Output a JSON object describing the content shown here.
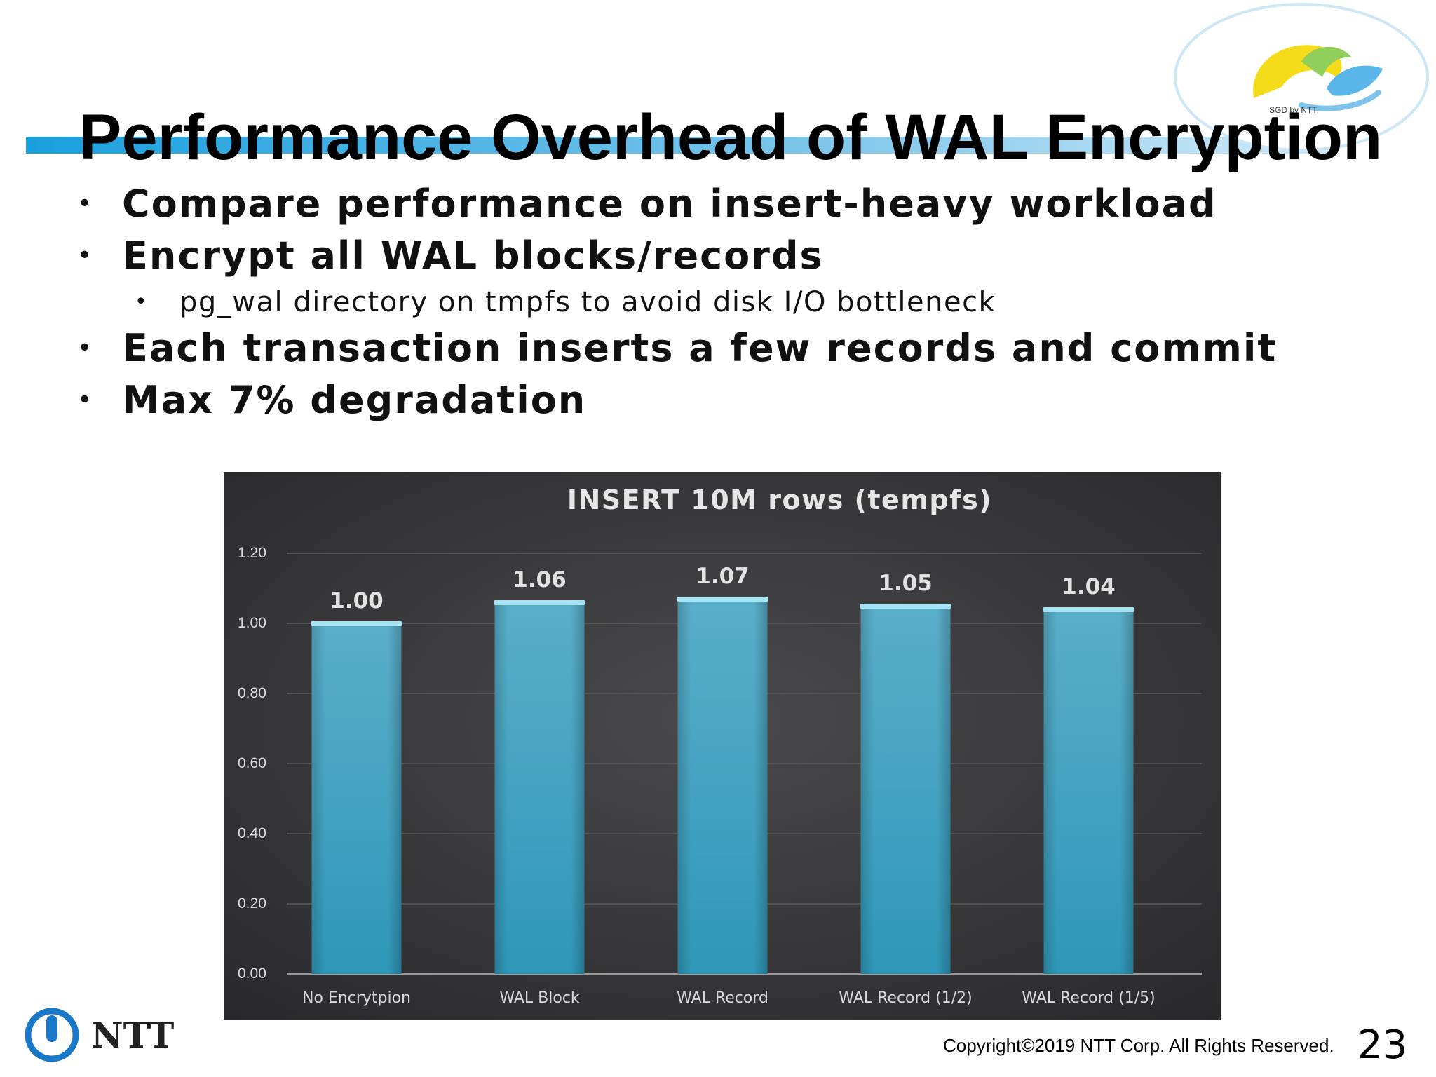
{
  "slide": {
    "title": "Performance Overhead of WAL Encryption",
    "badge_text": "SGD by NTT",
    "bullets": [
      {
        "text": "Compare performance on insert-heavy workload",
        "level": 1
      },
      {
        "text": "Encrypt all WAL blocks/records",
        "level": 1
      },
      {
        "text": "pg_wal directory on tmpfs to avoid disk I/O bottleneck",
        "level": 2
      },
      {
        "text": "Each transaction inserts a few records and commit",
        "level": 1
      },
      {
        "text": "Max 7% degradation",
        "level": 1
      }
    ],
    "logo_text": "NTT",
    "copyright": "Copyright©2019  NTT Corp. All Rights Reserved.",
    "page_number": "23"
  },
  "colors": {
    "chart_background": "#3a3a3c",
    "bar": "#3a9dbf",
    "bar_top": "#a6e3f2",
    "title_rule": "#2aa6df",
    "ntt_blue": "#1a78c8"
  },
  "chart_data": {
    "type": "bar",
    "title": "INSERT  10M rows (tempfs)",
    "categories": [
      "No Encrytpion",
      "WAL Block",
      "WAL Record",
      "WAL Record (1/2)",
      "WAL Record (1/5)"
    ],
    "values": [
      1.0,
      1.06,
      1.07,
      1.05,
      1.04
    ],
    "data_labels": [
      "1.00",
      "1.06",
      "1.07",
      "1.05",
      "1.04"
    ],
    "ylim": [
      0,
      1.2
    ],
    "yticks": [
      "0.00",
      "0.20",
      "0.40",
      "0.60",
      "0.80",
      "1.00",
      "1.20"
    ],
    "grid": true,
    "legend": "none"
  }
}
